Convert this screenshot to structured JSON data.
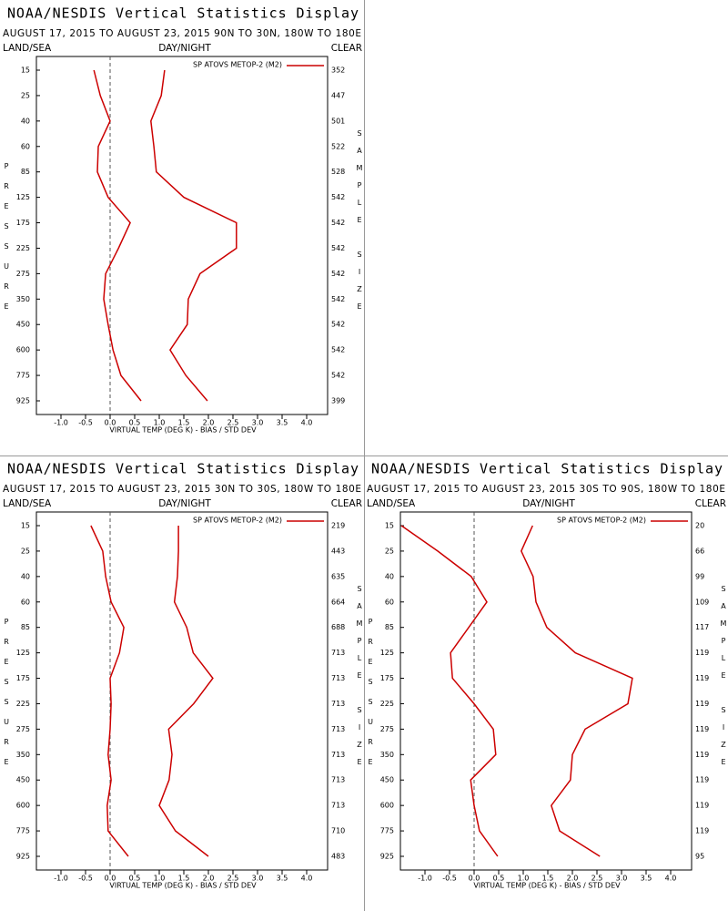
{
  "chart_data": [
    {
      "type": "line",
      "title": "NOAA/NESDIS Vertical Statistics Display",
      "subtitle": "AUGUST 17, 2015 TO AUGUST 23, 2015 90N TO 30N, 180W TO 180E",
      "left_header": "LAND/SEA",
      "center_header": "DAY/NIGHT",
      "right_header": "CLEAR",
      "y_label": "PRESSURE",
      "y2_label": "SAMPLE SIZE",
      "x_label": "VIRTUAL TEMP (DEG K) - BIAS / STD DEV",
      "legend_label": "SP ATOVS METOP-2 (M2)",
      "categories": [
        15,
        25,
        40,
        60,
        85,
        125,
        175,
        225,
        275,
        350,
        450,
        600,
        775,
        925
      ],
      "sample_sizes": [
        352,
        447,
        501,
        522,
        528,
        542,
        542,
        542,
        542,
        542,
        542,
        542,
        542,
        399
      ],
      "series": [
        {
          "color": "#cc0000",
          "values": [
            -0.33,
            -0.2,
            0.0,
            -0.24,
            -0.26,
            -0.04,
            0.41,
            0.17,
            -0.09,
            -0.13,
            -0.04,
            0.06,
            0.22,
            0.63
          ]
        },
        {
          "color": "#cc0000",
          "values": [
            1.11,
            1.04,
            0.83,
            0.89,
            0.94,
            1.5,
            2.57,
            2.57,
            1.83,
            1.59,
            1.57,
            1.22,
            1.54,
            1.98
          ]
        }
      ],
      "xlim": [
        -1.5,
        4.5
      ],
      "xticks": [
        {
          "value": -1,
          "label": "-1.0"
        },
        {
          "value": -0.5,
          "label": "-0.5"
        },
        {
          "value": 0,
          "label": "0.0"
        },
        {
          "value": 0.5,
          "label": "0.5"
        },
        {
          "value": 1,
          "label": "1.0"
        },
        {
          "value": 1.5,
          "label": "1.5"
        },
        {
          "value": 2,
          "label": "2.0"
        },
        {
          "value": 2.5,
          "label": "2.5"
        },
        {
          "value": 3,
          "label": "3.0"
        },
        {
          "value": 3.5,
          "label": "3.5"
        },
        {
          "value": 4,
          "label": "4.0"
        }
      ]
    },
    {
      "type": "line",
      "title": "NOAA/NESDIS Vertical Statistics Display",
      "subtitle": "AUGUST 17, 2015 TO AUGUST 23, 2015 30N TO 30S, 180W TO 180E",
      "left_header": "LAND/SEA",
      "center_header": "DAY/NIGHT",
      "right_header": "CLEAR",
      "y_label": "PRESSURE",
      "y2_label": "SAMPLE SIZE",
      "x_label": "VIRTUAL TEMP (DEG K) - BIAS / STD DEV",
      "legend_label": "SP ATOVS METOP-2 (M2)",
      "categories": [
        15,
        25,
        40,
        60,
        85,
        125,
        175,
        225,
        275,
        350,
        450,
        600,
        775,
        925
      ],
      "sample_sizes": [
        219,
        443,
        635,
        664,
        688,
        713,
        713,
        713,
        713,
        713,
        713,
        713,
        710,
        483
      ],
      "series": [
        {
          "color": "#cc0000",
          "values": [
            -0.39,
            -0.15,
            -0.09,
            0.02,
            0.28,
            0.19,
            0.0,
            0.02,
            0.0,
            -0.04,
            0.02,
            -0.06,
            -0.04,
            0.37
          ]
        },
        {
          "color": "#cc0000",
          "values": [
            1.39,
            1.39,
            1.37,
            1.31,
            1.56,
            1.69,
            2.09,
            1.7,
            1.19,
            1.26,
            1.2,
            1.0,
            1.33,
            2.0
          ]
        }
      ],
      "xlim": [
        -1.5,
        4.5
      ],
      "xticks": [
        {
          "value": -1,
          "label": "-1.0"
        },
        {
          "value": -0.5,
          "label": "-0.5"
        },
        {
          "value": 0,
          "label": "0.0"
        },
        {
          "value": 0.5,
          "label": "0.5"
        },
        {
          "value": 1,
          "label": "1.0"
        },
        {
          "value": 1.5,
          "label": "1.5"
        },
        {
          "value": 2,
          "label": "2.0"
        },
        {
          "value": 2.5,
          "label": "2.5"
        },
        {
          "value": 3,
          "label": "3.0"
        },
        {
          "value": 3.5,
          "label": "3.5"
        },
        {
          "value": 4,
          "label": "4.0"
        }
      ]
    },
    {
      "type": "line",
      "title": "NOAA/NESDIS Vertical Statistics Display",
      "subtitle": "AUGUST 17, 2015 TO AUGUST 23, 2015 30S TO 90S, 180W TO 180E",
      "left_header": "LAND/SEA",
      "center_header": "DAY/NIGHT",
      "right_header": "CLEAR",
      "y_label": "PRESSURE",
      "y2_label": "SAMPLE SIZE",
      "x_label": "VIRTUAL TEMP (DEG K) - BIAS / STD DEV",
      "legend_label": "SP ATOVS METOP-2 (M2)",
      "categories": [
        15,
        25,
        40,
        60,
        85,
        125,
        175,
        225,
        275,
        350,
        450,
        600,
        775,
        925
      ],
      "sample_sizes": [
        20,
        66,
        99,
        109,
        117,
        119,
        119,
        119,
        119,
        119,
        119,
        119,
        119,
        95
      ],
      "series": [
        {
          "color": "#cc0000",
          "values": [
            -1.48,
            -0.74,
            -0.06,
            0.26,
            -0.11,
            -0.48,
            -0.44,
            0.0,
            0.39,
            0.44,
            -0.07,
            0.0,
            0.11,
            0.48
          ]
        },
        {
          "color": "#cc0000",
          "values": [
            1.19,
            0.96,
            1.2,
            1.26,
            1.48,
            2.06,
            3.22,
            3.13,
            2.26,
            2.0,
            1.96,
            1.57,
            1.74,
            2.56
          ]
        }
      ],
      "xlim": [
        -1.5,
        4.5
      ],
      "xticks": [
        {
          "value": -1,
          "label": "-1.0"
        },
        {
          "value": -0.5,
          "label": "-0.5"
        },
        {
          "value": 0,
          "label": "0.0"
        },
        {
          "value": 0.5,
          "label": "0.5"
        },
        {
          "value": 1,
          "label": "1.0"
        },
        {
          "value": 1.5,
          "label": "1.5"
        },
        {
          "value": 2,
          "label": "2.0"
        },
        {
          "value": 2.5,
          "label": "2.5"
        },
        {
          "value": 3,
          "label": "3.0"
        },
        {
          "value": 3.5,
          "label": "3.5"
        },
        {
          "value": 4,
          "label": "4.0"
        }
      ]
    }
  ]
}
